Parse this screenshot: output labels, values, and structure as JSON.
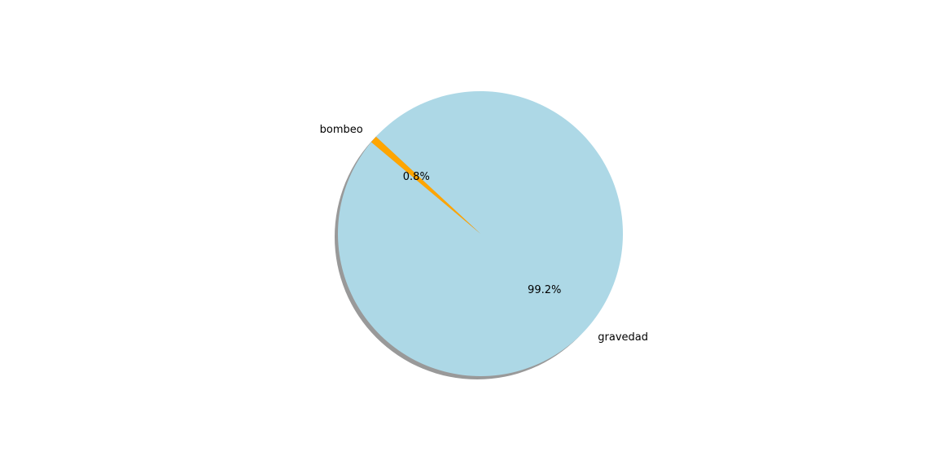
{
  "chart_data": {
    "type": "pie",
    "title": "",
    "slices": [
      {
        "label": "gravedad",
        "value": 99.2,
        "pct_label": "99.2%",
        "color": "#add8e6"
      },
      {
        "label": "bombeo",
        "value": 0.8,
        "pct_label": "0.8%",
        "color": "#ffa500"
      }
    ],
    "start_angle_deg": 140,
    "shadow": true,
    "shadow_color": "#999999"
  }
}
